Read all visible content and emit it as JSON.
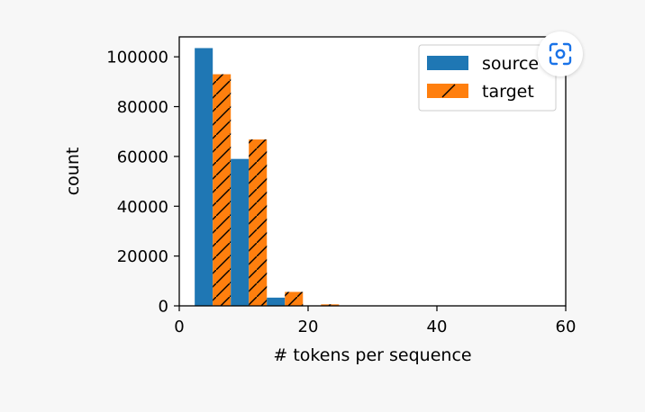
{
  "chart_data": {
    "type": "bar",
    "title": "",
    "xlabel": "# tokens per sequence",
    "ylabel": "count",
    "xlim": [
      0,
      60
    ],
    "ylim": [
      0,
      108000
    ],
    "x_ticks": [
      "0",
      "20",
      "40",
      "60"
    ],
    "y_ticks": [
      "0",
      "20000",
      "40000",
      "60000",
      "80000",
      "100000"
    ],
    "grid": false,
    "legend_position": "top-right",
    "bins": [
      [
        2.4,
        8.0
      ],
      [
        8.0,
        13.6
      ],
      [
        13.6,
        19.2
      ],
      [
        19.2,
        24.8
      ]
    ],
    "series": [
      {
        "name": "source",
        "color": "#1f77b4",
        "hatch": "none",
        "values": [
          103500,
          59000,
          3300,
          100
        ]
      },
      {
        "name": "target",
        "color": "#ff7f0e",
        "hatch": "diagonal",
        "values": [
          93000,
          66800,
          5600,
          600
        ]
      }
    ]
  },
  "toolbar": {
    "lens_icon": "google-lens-icon"
  }
}
